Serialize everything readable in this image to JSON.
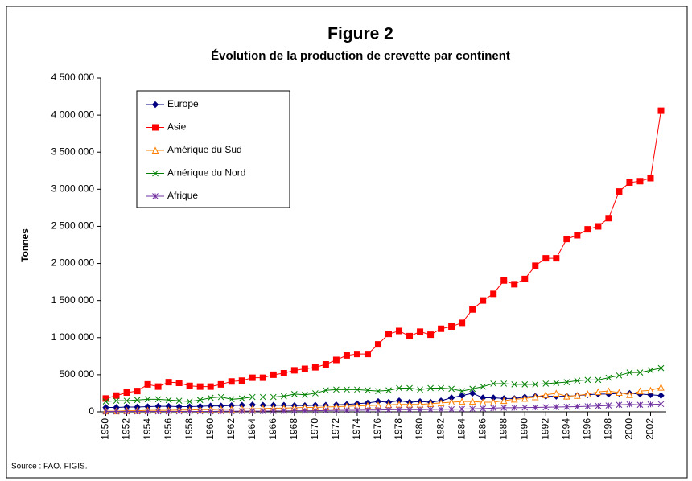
{
  "chart_data": {
    "type": "line",
    "title": "Figure 2",
    "subtitle": "Évolution de la production de crevette par continent",
    "y_label": "Tonnes",
    "source": "Source : FAO. FIGIS.",
    "x": [
      1950,
      1951,
      1952,
      1953,
      1954,
      1955,
      1956,
      1957,
      1958,
      1959,
      1960,
      1961,
      1962,
      1963,
      1964,
      1965,
      1966,
      1967,
      1968,
      1969,
      1970,
      1971,
      1972,
      1973,
      1974,
      1975,
      1976,
      1977,
      1978,
      1979,
      1980,
      1981,
      1982,
      1983,
      1984,
      1985,
      1986,
      1987,
      1988,
      1989,
      1990,
      1991,
      1992,
      1993,
      1994,
      1995,
      1996,
      1997,
      1998,
      1999,
      2000,
      2001,
      2002,
      2003
    ],
    "xlim": [
      1949.5,
      2003.5
    ],
    "xticks": [
      1950,
      1952,
      1954,
      1956,
      1958,
      1960,
      1962,
      1964,
      1966,
      1968,
      1970,
      1972,
      1974,
      1976,
      1978,
      1980,
      1982,
      1984,
      1986,
      1988,
      1990,
      1992,
      1994,
      1996,
      1998,
      2000,
      2002
    ],
    "ylim": [
      0,
      4500000
    ],
    "yticks": [
      {
        "value": 0,
        "label": "0"
      },
      {
        "value": 500000,
        "label": "500 000"
      },
      {
        "value": 1000000,
        "label": "1 000 000"
      },
      {
        "value": 1500000,
        "label": "1 500 000"
      },
      {
        "value": 2000000,
        "label": "2 000 000"
      },
      {
        "value": 2500000,
        "label": "2 500 000"
      },
      {
        "value": 3000000,
        "label": "3 000 000"
      },
      {
        "value": 3500000,
        "label": "3 500 000"
      },
      {
        "value": 4000000,
        "label": "4 000 000"
      },
      {
        "value": 4500000,
        "label": "4 500 000"
      }
    ],
    "legend": "upper left",
    "series": [
      {
        "name": "Europe",
        "color": "#000080",
        "marker": "diamond",
        "values": [
          60000,
          60000,
          65000,
          65000,
          70000,
          75000,
          75000,
          70000,
          70000,
          75000,
          80000,
          80000,
          85000,
          90000,
          95000,
          90000,
          90000,
          90000,
          85000,
          85000,
          90000,
          90000,
          95000,
          100000,
          110000,
          120000,
          140000,
          130000,
          150000,
          130000,
          140000,
          130000,
          150000,
          190000,
          220000,
          250000,
          190000,
          190000,
          180000,
          180000,
          200000,
          210000,
          210000,
          210000,
          210000,
          220000,
          230000,
          240000,
          240000,
          250000,
          250000,
          240000,
          230000,
          220000
        ]
      },
      {
        "name": "Asie",
        "color": "#ff0000",
        "marker": "square",
        "values": [
          180000,
          220000,
          260000,
          280000,
          370000,
          340000,
          400000,
          390000,
          350000,
          340000,
          340000,
          370000,
          410000,
          420000,
          460000,
          460000,
          500000,
          520000,
          560000,
          580000,
          600000,
          640000,
          700000,
          760000,
          780000,
          780000,
          910000,
          1050000,
          1090000,
          1020000,
          1080000,
          1040000,
          1120000,
          1150000,
          1200000,
          1380000,
          1500000,
          1590000,
          1770000,
          1720000,
          1790000,
          1970000,
          2070000,
          2070000,
          2330000,
          2380000,
          2460000,
          2500000,
          2610000,
          2970000,
          3090000,
          3110000,
          3150000,
          4060000
        ]
      },
      {
        "name": "Amérique du  Sud",
        "color": "#ff8000",
        "marker": "triangle",
        "values": [
          10000,
          10000,
          15000,
          15000,
          20000,
          20000,
          20000,
          25000,
          25000,
          30000,
          30000,
          35000,
          35000,
          40000,
          40000,
          45000,
          50000,
          50000,
          55000,
          60000,
          60000,
          65000,
          70000,
          75000,
          80000,
          85000,
          90000,
          95000,
          100000,
          100000,
          100000,
          110000,
          120000,
          130000,
          140000,
          140000,
          130000,
          130000,
          150000,
          170000,
          180000,
          200000,
          230000,
          250000,
          210000,
          220000,
          240000,
          270000,
          280000,
          260000,
          230000,
          280000,
          290000,
          330000
        ]
      },
      {
        "name": "Amérique du Nord",
        "color": "#008000",
        "marker": "x",
        "values": [
          140000,
          150000,
          150000,
          160000,
          170000,
          170000,
          160000,
          150000,
          140000,
          160000,
          190000,
          200000,
          170000,
          180000,
          200000,
          200000,
          200000,
          210000,
          240000,
          230000,
          250000,
          290000,
          300000,
          300000,
          300000,
          290000,
          280000,
          290000,
          320000,
          320000,
          300000,
          320000,
          320000,
          310000,
          280000,
          310000,
          340000,
          380000,
          380000,
          370000,
          370000,
          370000,
          380000,
          390000,
          400000,
          420000,
          430000,
          430000,
          460000,
          490000,
          530000,
          530000,
          560000,
          590000
        ]
      },
      {
        "name": "Afrique",
        "color": "#7030a0",
        "marker": "star",
        "values": [
          5000,
          5000,
          5000,
          5000,
          5000,
          5000,
          5000,
          5000,
          5000,
          5000,
          5000,
          8000,
          8000,
          10000,
          10000,
          10000,
          12000,
          12000,
          15000,
          15000,
          15000,
          18000,
          20000,
          20000,
          22000,
          25000,
          25000,
          28000,
          30000,
          30000,
          30000,
          32000,
          35000,
          35000,
          38000,
          40000,
          45000,
          50000,
          55000,
          55000,
          58000,
          60000,
          62000,
          65000,
          68000,
          70000,
          75000,
          80000,
          85000,
          95000,
          100000,
          95000,
          100000,
          105000
        ]
      }
    ]
  }
}
